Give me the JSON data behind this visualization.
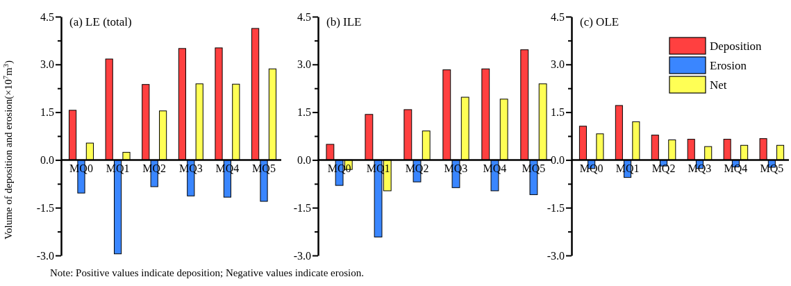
{
  "chart_data": [
    {
      "type": "bar",
      "title": "(a) LE (total)",
      "ylabel": "Volume of deposition and erosion(×10$^{7}$m$^{3}$)",
      "categories": [
        "MQ0",
        "MQ1",
        "MQ2",
        "MQ3",
        "MQ4",
        "MQ5"
      ],
      "series": [
        {
          "color": "#ff4040",
          "values": [
            1.56,
            3.17,
            2.37,
            3.5,
            3.52,
            4.13
          ]
        },
        {
          "color": "#3a86ff",
          "values": [
            -1.04,
            -2.95,
            -0.84,
            -1.13,
            -1.17,
            -1.3
          ]
        },
        {
          "color": "#ffff55",
          "values": [
            0.53,
            0.24,
            1.54,
            2.39,
            2.38,
            2.86
          ]
        }
      ],
      "ylim": [
        -3.0,
        4.5
      ],
      "yticks": [
        {
          "value": -3.0,
          "label": "-3.0"
        },
        {
          "value": -2.25,
          "label": null
        },
        {
          "value": -1.5,
          "label": "-1.5"
        },
        {
          "value": -0.75,
          "label": null
        },
        {
          "value": 0,
          "label": "0.0"
        },
        {
          "value": 0.75,
          "label": null
        },
        {
          "value": 1.5,
          "label": "1.5"
        },
        {
          "value": 2.25,
          "label": null
        },
        {
          "value": 3.0,
          "label": "3.0"
        },
        {
          "value": 3.75,
          "label": null
        },
        {
          "value": 4.5,
          "label": "4.5"
        }
      ],
      "annotations": [
        "Note: Positive values indicate deposition; Negative values indicate erosion."
      ]
    },
    {
      "type": "bar",
      "title": "(b) ILE",
      "categories": [
        "MQ0",
        "MQ1",
        "MQ2",
        "MQ3",
        "MQ4",
        "MQ5"
      ],
      "series": [
        {
          "color": "#ff4040",
          "values": [
            0.49,
            1.43,
            1.58,
            2.83,
            2.86,
            3.46
          ]
        },
        {
          "color": "#3a86ff",
          "values": [
            -0.8,
            -2.42,
            -0.69,
            -0.87,
            -0.97,
            -1.09
          ]
        },
        {
          "color": "#ffff55",
          "values": [
            -0.3,
            -0.97,
            0.91,
            1.97,
            1.91,
            2.39
          ]
        }
      ],
      "ylim": [
        -3.0,
        4.5
      ],
      "yticks": [
        {
          "value": -3.0,
          "label": "-3.0"
        },
        {
          "value": -2.25,
          "label": null
        },
        {
          "value": -1.5,
          "label": "-1.5"
        },
        {
          "value": -0.75,
          "label": null
        },
        {
          "value": 0,
          "label": "0.0"
        },
        {
          "value": 0.75,
          "label": null
        },
        {
          "value": 1.5,
          "label": "1.5"
        },
        {
          "value": 2.25,
          "label": null
        },
        {
          "value": 3.0,
          "label": "3.0"
        },
        {
          "value": 3.75,
          "label": null
        },
        {
          "value": 4.5,
          "label": "4.5"
        }
      ]
    },
    {
      "type": "bar",
      "title": "(c) OLE",
      "legend": "top right",
      "categories": [
        "MQ0",
        "MQ1",
        "MQ2",
        "MQ3",
        "MQ4",
        "MQ5"
      ],
      "series": [
        {
          "name": "Deposition",
          "color": "#ff4040",
          "values": [
            1.06,
            1.71,
            0.78,
            0.65,
            0.65,
            0.67
          ]
        },
        {
          "name": "Erosion",
          "color": "#3a86ff",
          "values": [
            -0.27,
            -0.55,
            -0.19,
            -0.27,
            -0.22,
            -0.23
          ]
        },
        {
          "name": "Net",
          "color": "#ffff55",
          "values": [
            0.82,
            1.2,
            0.63,
            0.42,
            0.46,
            0.46
          ]
        }
      ],
      "ylim": [
        -3.0,
        4.5
      ],
      "yticks": [
        {
          "value": -3.0,
          "label": "-3.0"
        },
        {
          "value": -2.25,
          "label": null
        },
        {
          "value": -1.5,
          "label": "-1.5"
        },
        {
          "value": -0.75,
          "label": null
        },
        {
          "value": 0,
          "label": "0.0"
        },
        {
          "value": 0.75,
          "label": null
        },
        {
          "value": 1.5,
          "label": "1.5"
        },
        {
          "value": 2.25,
          "label": null
        },
        {
          "value": 3.0,
          "label": "3.0"
        },
        {
          "value": 3.75,
          "label": null
        },
        {
          "value": 4.5,
          "label": "4.5"
        }
      ]
    }
  ]
}
